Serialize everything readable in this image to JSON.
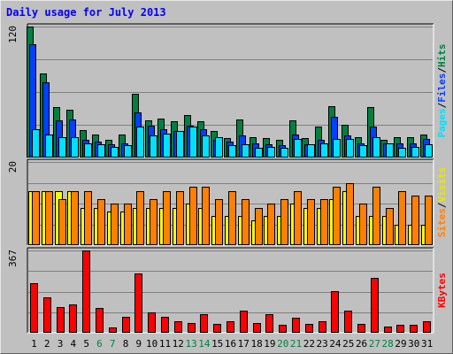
{
  "title": "Daily usage for July 2013",
  "colors": {
    "hits": "#008040",
    "files": "#0040ff",
    "pages": "#00e0ff",
    "visits": "#ffff00",
    "sites": "#ff8000",
    "kbytes": "#ff0000",
    "weekend": "#008040",
    "weekday": "#000000",
    "panel": "#c0c0c0",
    "grid": "#808080"
  },
  "chart_data": [
    {
      "type": "bar",
      "ylim": [
        0,
        120
      ],
      "tick_label": "120",
      "legend": [
        {
          "label": "Pages",
          "key": "pages"
        },
        {
          "label": "Files",
          "key": "files"
        },
        {
          "label": "Hits",
          "key": "hits"
        }
      ],
      "legend_separator": "/",
      "series": [
        {
          "name": "Hits",
          "key": "hits",
          "values": [
            120,
            77,
            46,
            44,
            25,
            21,
            16,
            21,
            58,
            34,
            36,
            33,
            39,
            33,
            24,
            18,
            35,
            19,
            18,
            16,
            34,
            18,
            28,
            47,
            30,
            19,
            46,
            16,
            19,
            19,
            21
          ]
        },
        {
          "name": "Files",
          "key": "files",
          "values": [
            104,
            69,
            34,
            35,
            16,
            15,
            12,
            13,
            41,
            29,
            26,
            24,
            29,
            26,
            16,
            15,
            20,
            13,
            12,
            11,
            21,
            12,
            16,
            37,
            20,
            13,
            28,
            13,
            13,
            13,
            17
          ]
        },
        {
          "name": "Pages",
          "key": "pages",
          "values": [
            26,
            21,
            19,
            19,
            13,
            12,
            10,
            11,
            28,
            20,
            22,
            24,
            28,
            20,
            19,
            11,
            12,
            9,
            10,
            9,
            17,
            12,
            13,
            17,
            17,
            11,
            19,
            13,
            9,
            10,
            12
          ]
        }
      ]
    },
    {
      "type": "bar",
      "ylim": [
        0,
        20
      ],
      "tick_label": "20",
      "legend": [
        {
          "label": "Sites",
          "key": "sites"
        },
        {
          "label": "Visits",
          "key": "visits"
        }
      ],
      "legend_separator": "/",
      "series": [
        {
          "name": "Visits",
          "key": "visits",
          "values": [
            13,
            13,
            13,
            13,
            9,
            9,
            8,
            8,
            9,
            9,
            9,
            9,
            10,
            9,
            7,
            7,
            7,
            6,
            7,
            7,
            10,
            9,
            9,
            11,
            13,
            7,
            7,
            7,
            5,
            5,
            5
          ]
        },
        {
          "name": "Sites",
          "key": "sites",
          "values": [
            13,
            13,
            11,
            13,
            13,
            11,
            10,
            10,
            13,
            11,
            13,
            13,
            14,
            14,
            11,
            13,
            11,
            9,
            10,
            11,
            13,
            11,
            11,
            14,
            15,
            10,
            14,
            9,
            13,
            12,
            12
          ]
        }
      ]
    },
    {
      "type": "bar",
      "ylim": [
        0,
        367
      ],
      "tick_label": "367",
      "legend": [
        {
          "label": "KBytes",
          "key": "kbytes"
        }
      ],
      "legend_separator": "",
      "series": [
        {
          "name": "KBytes",
          "key": "kbytes",
          "values": [
            222,
            156,
            113,
            125,
            367,
            109,
            23,
            71,
            266,
            92,
            72,
            51,
            42,
            84,
            39,
            51,
            100,
            43,
            82,
            34,
            66,
            38,
            50,
            186,
            100,
            39,
            243,
            26,
            36,
            37,
            52
          ]
        }
      ]
    }
  ],
  "x_labels": [
    "1",
    "2",
    "3",
    "4",
    "5",
    "6",
    "7",
    "8",
    "9",
    "10",
    "11",
    "12",
    "13",
    "14",
    "15",
    "16",
    "17",
    "18",
    "19",
    "20",
    "21",
    "22",
    "23",
    "24",
    "25",
    "26",
    "27",
    "28",
    "29",
    "30",
    "31"
  ],
  "weekend_days": [
    6,
    7,
    13,
    14,
    20,
    21,
    27,
    28
  ]
}
